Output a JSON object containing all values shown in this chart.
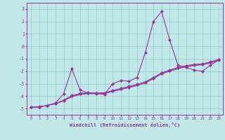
{
  "title": "",
  "xlabel": "Windchill (Refroidissement éolien,°C)",
  "ylabel": "",
  "bg_color": "#c0e8e8",
  "grid_color": "#98c8c8",
  "line_color": "#993399",
  "xlim": [
    -0.5,
    23.5
  ],
  "ylim": [
    -5.5,
    3.5
  ],
  "yticks": [
    -5,
    -4,
    -3,
    -2,
    -1,
    0,
    1,
    2,
    3
  ],
  "xticks": [
    0,
    1,
    2,
    3,
    4,
    5,
    6,
    7,
    8,
    9,
    10,
    11,
    12,
    13,
    14,
    15,
    16,
    17,
    18,
    19,
    20,
    21,
    22,
    23
  ],
  "series1": [
    [
      0,
      -4.9
    ],
    [
      1,
      -4.85
    ],
    [
      2,
      -4.75
    ],
    [
      3,
      -4.55
    ],
    [
      4,
      -3.8
    ],
    [
      5,
      -1.8
    ],
    [
      6,
      -3.5
    ],
    [
      7,
      -3.75
    ],
    [
      8,
      -3.8
    ],
    [
      9,
      -3.85
    ],
    [
      10,
      -3.0
    ],
    [
      11,
      -2.75
    ],
    [
      12,
      -2.8
    ],
    [
      13,
      -2.5
    ],
    [
      14,
      -0.5
    ],
    [
      15,
      2.0
    ],
    [
      16,
      2.8
    ],
    [
      17,
      0.5
    ],
    [
      18,
      -1.5
    ],
    [
      19,
      -1.7
    ],
    [
      20,
      -1.9
    ],
    [
      21,
      -2.0
    ],
    [
      22,
      -1.5
    ],
    [
      23,
      -1.1
    ]
  ],
  "series2": [
    [
      0,
      -4.9
    ],
    [
      1,
      -4.87
    ],
    [
      2,
      -4.75
    ],
    [
      3,
      -4.58
    ],
    [
      4,
      -4.32
    ],
    [
      5,
      -3.95
    ],
    [
      6,
      -3.78
    ],
    [
      7,
      -3.72
    ],
    [
      8,
      -3.75
    ],
    [
      9,
      -3.73
    ],
    [
      10,
      -3.55
    ],
    [
      11,
      -3.38
    ],
    [
      12,
      -3.22
    ],
    [
      13,
      -3.05
    ],
    [
      14,
      -2.85
    ],
    [
      15,
      -2.5
    ],
    [
      16,
      -2.12
    ],
    [
      17,
      -1.9
    ],
    [
      18,
      -1.7
    ],
    [
      19,
      -1.55
    ],
    [
      20,
      -1.45
    ],
    [
      21,
      -1.4
    ],
    [
      22,
      -1.25
    ],
    [
      23,
      -1.05
    ]
  ],
  "series3": [
    [
      0,
      -4.9
    ],
    [
      1,
      -4.87
    ],
    [
      2,
      -4.75
    ],
    [
      3,
      -4.6
    ],
    [
      4,
      -4.35
    ],
    [
      5,
      -4.0
    ],
    [
      6,
      -3.83
    ],
    [
      7,
      -3.76
    ],
    [
      8,
      -3.78
    ],
    [
      9,
      -3.76
    ],
    [
      10,
      -3.6
    ],
    [
      11,
      -3.43
    ],
    [
      12,
      -3.28
    ],
    [
      13,
      -3.1
    ],
    [
      14,
      -2.9
    ],
    [
      15,
      -2.55
    ],
    [
      16,
      -2.17
    ],
    [
      17,
      -1.95
    ],
    [
      18,
      -1.75
    ],
    [
      19,
      -1.6
    ],
    [
      20,
      -1.5
    ],
    [
      21,
      -1.44
    ],
    [
      22,
      -1.3
    ],
    [
      23,
      -1.08
    ]
  ],
  "series4": [
    [
      0,
      -4.9
    ],
    [
      1,
      -4.87
    ],
    [
      2,
      -4.75
    ],
    [
      3,
      -4.62
    ],
    [
      4,
      -4.38
    ],
    [
      5,
      -4.05
    ],
    [
      6,
      -3.88
    ],
    [
      7,
      -3.8
    ],
    [
      8,
      -3.82
    ],
    [
      9,
      -3.79
    ],
    [
      10,
      -3.63
    ],
    [
      11,
      -3.47
    ],
    [
      12,
      -3.32
    ],
    [
      13,
      -3.15
    ],
    [
      14,
      -2.94
    ],
    [
      15,
      -2.6
    ],
    [
      16,
      -2.22
    ],
    [
      17,
      -2.0
    ],
    [
      18,
      -1.8
    ],
    [
      19,
      -1.64
    ],
    [
      20,
      -1.54
    ],
    [
      21,
      -1.48
    ],
    [
      22,
      -1.34
    ],
    [
      23,
      -1.1
    ]
  ]
}
